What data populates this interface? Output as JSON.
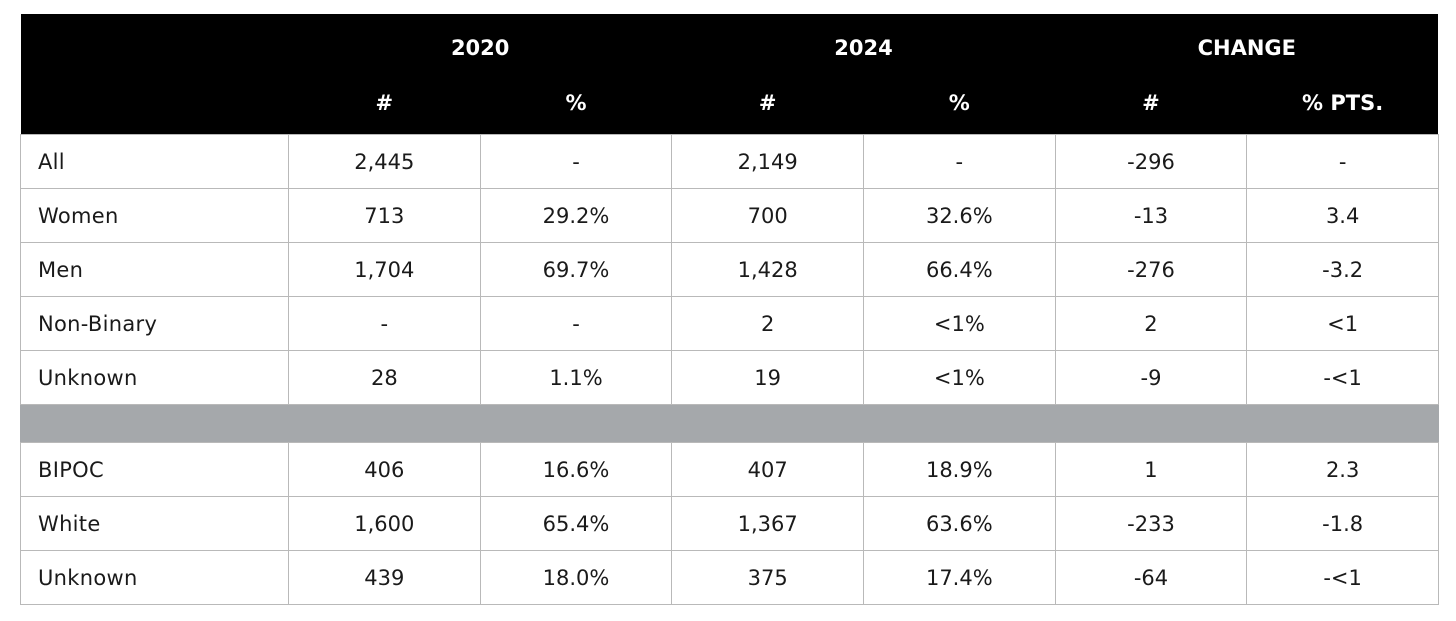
{
  "header": {
    "groups": [
      {
        "label": "",
        "span": 1
      },
      {
        "label": "2020",
        "span": 2
      },
      {
        "label": "2024",
        "span": 2
      },
      {
        "label": "CHANGE",
        "span": 2
      }
    ],
    "subheaders": [
      "",
      "#",
      "%",
      "#",
      "%",
      "#",
      "% PTS."
    ]
  },
  "sections": [
    {
      "rows": [
        {
          "label": "All",
          "cells": [
            "2,445",
            "-",
            "2,149",
            "-",
            "-296",
            "-"
          ]
        },
        {
          "label": "Women",
          "cells": [
            "713",
            "29.2%",
            "700",
            "32.6%",
            "-13",
            "3.4"
          ]
        },
        {
          "label": "Men",
          "cells": [
            "1,704",
            "69.7%",
            "1,428",
            "66.4%",
            "-276",
            "-3.2"
          ]
        },
        {
          "label": "Non-Binary",
          "cells": [
            "-",
            "-",
            "2",
            "<1%",
            "2",
            "<1"
          ]
        },
        {
          "label": "Unknown",
          "cells": [
            "28",
            "1.1%",
            "19",
            "<1%",
            "-9",
            "-<1"
          ]
        }
      ]
    },
    {
      "rows": [
        {
          "label": "BIPOC",
          "cells": [
            "406",
            "16.6%",
            "407",
            "18.9%",
            "1",
            "2.3"
          ]
        },
        {
          "label": "White",
          "cells": [
            "1,600",
            "65.4%",
            "1,367",
            "63.6%",
            "-233",
            "-1.8"
          ]
        },
        {
          "label": "Unknown",
          "cells": [
            "439",
            "18.0%",
            "375",
            "17.4%",
            "-64",
            "-<1"
          ]
        }
      ]
    }
  ],
  "colors": {
    "header_bg": "#000000",
    "header_text": "#ffffff",
    "separator": "#a5a8ab",
    "border": "#b9b9b9"
  }
}
